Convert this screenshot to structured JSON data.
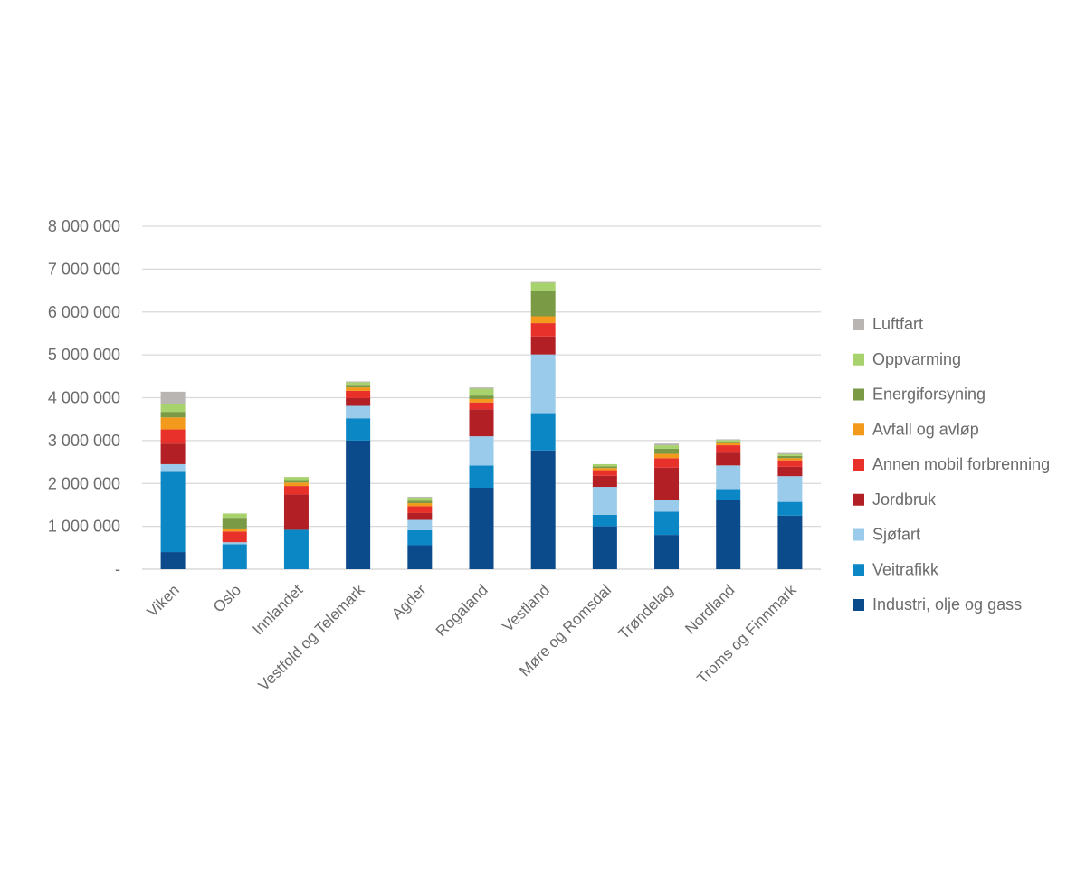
{
  "chart_data": {
    "type": "bar",
    "stacked": true,
    "title": "",
    "xlabel": "",
    "ylabel": "",
    "ylim": [
      0,
      8000000
    ],
    "y_ticks": [
      {
        "value": 0,
        "label": "-"
      },
      {
        "value": 1000000,
        "label": "1 000 000"
      },
      {
        "value": 2000000,
        "label": "2 000 000"
      },
      {
        "value": 3000000,
        "label": "3 000 000"
      },
      {
        "value": 4000000,
        "label": "4 000 000"
      },
      {
        "value": 5000000,
        "label": "5 000 000"
      },
      {
        "value": 6000000,
        "label": "6 000 000"
      },
      {
        "value": 7000000,
        "label": "7 000 000"
      },
      {
        "value": 8000000,
        "label": "8 000 000"
      }
    ],
    "grid": true,
    "legend_position": "right",
    "categories": [
      "Viken",
      "Oslo",
      "Innlandet",
      "Vestfold og Telemark",
      "Agder",
      "Rogaland",
      "Vestland",
      "Møre og Romsdal",
      "Trøndelag",
      "Nordland",
      "Troms og Finnmark"
    ],
    "series": [
      {
        "name": "Industri, olje og gass",
        "color": "#0b4a8b",
        "values": [
          400000,
          0,
          0,
          3000000,
          560000,
          1900000,
          2770000,
          1000000,
          800000,
          1620000,
          1250000
        ]
      },
      {
        "name": "Veitrafikk",
        "color": "#0b87c5",
        "values": [
          1870000,
          580000,
          920000,
          520000,
          350000,
          520000,
          870000,
          270000,
          540000,
          250000,
          320000
        ]
      },
      {
        "name": "Sjøfart",
        "color": "#9bcbea",
        "values": [
          180000,
          50000,
          0,
          290000,
          240000,
          680000,
          1370000,
          650000,
          280000,
          550000,
          600000
        ]
      },
      {
        "name": "Jordbruk",
        "color": "#b21f24",
        "values": [
          480000,
          0,
          820000,
          180000,
          160000,
          630000,
          420000,
          260000,
          750000,
          300000,
          220000
        ]
      },
      {
        "name": "Annen mobil forbrenning",
        "color": "#e8312b",
        "values": [
          330000,
          250000,
          200000,
          170000,
          160000,
          160000,
          310000,
          130000,
          220000,
          170000,
          150000
        ]
      },
      {
        "name": "Avfall og avløp",
        "color": "#f39a1c",
        "values": [
          280000,
          50000,
          80000,
          80000,
          70000,
          80000,
          160000,
          50000,
          100000,
          50000,
          50000
        ]
      },
      {
        "name": "Energiforsyning",
        "color": "#7a9a45",
        "values": [
          130000,
          270000,
          60000,
          40000,
          60000,
          80000,
          580000,
          40000,
          120000,
          30000,
          50000
        ]
      },
      {
        "name": "Oppvarming",
        "color": "#a8d26d",
        "values": [
          180000,
          100000,
          70000,
          80000,
          70000,
          160000,
          200000,
          50000,
          80000,
          40000,
          40000
        ]
      },
      {
        "name": "Luftfart",
        "color": "#b8b5b2",
        "values": [
          290000,
          0,
          0,
          20000,
          20000,
          30000,
          20000,
          0,
          40000,
          20000,
          30000
        ]
      }
    ]
  }
}
